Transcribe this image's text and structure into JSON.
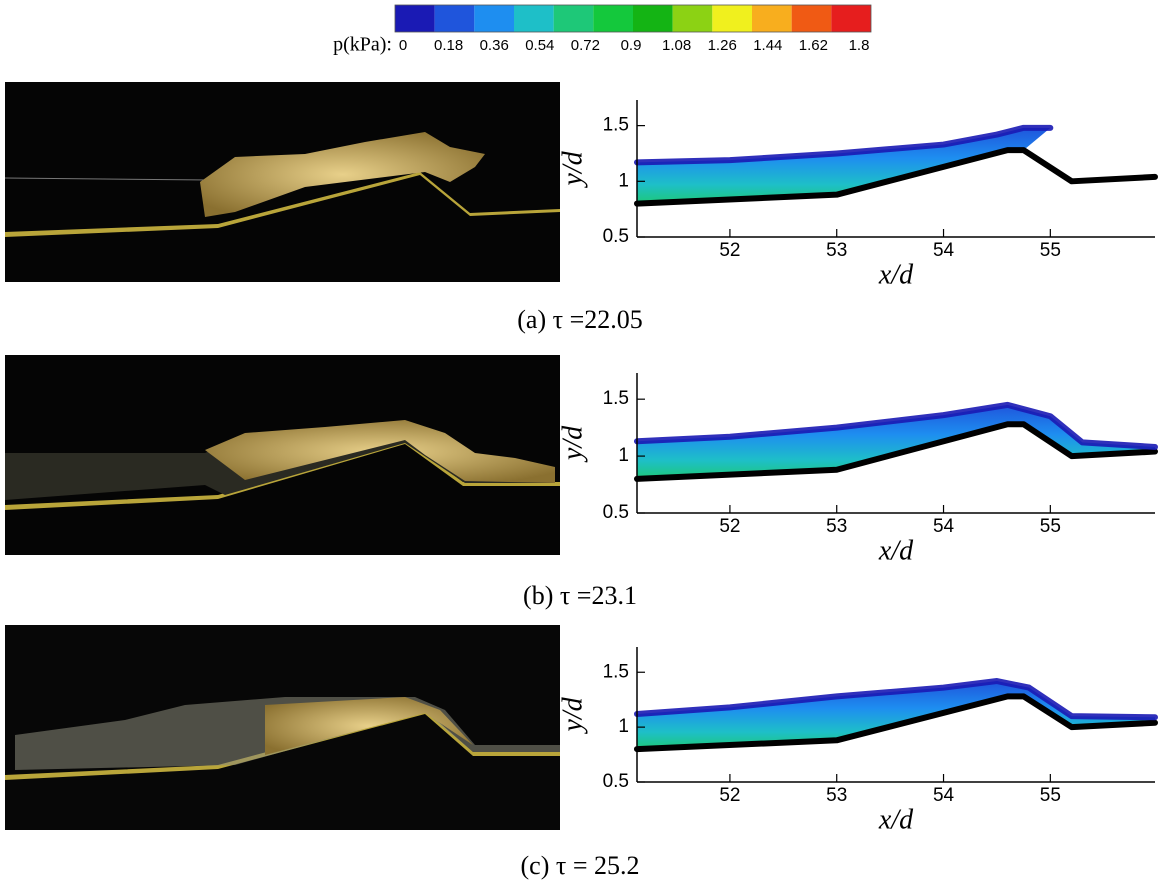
{
  "colorbar": {
    "label": "p(kPa):",
    "ticks": [
      0,
      0.18,
      0.36,
      0.54,
      0.72,
      0.9,
      1.08,
      1.26,
      1.44,
      1.62,
      1.8
    ],
    "colors": [
      "#1a1ab4",
      "#1f55dc",
      "#1e8ef0",
      "#1ebfc8",
      "#1ec878",
      "#14c83c",
      "#14b414",
      "#8cd214",
      "#f0f01e",
      "#f8ae1e",
      "#f05a14",
      "#e61e1e"
    ]
  },
  "chart_data": [
    {
      "type": "area",
      "caption": "(a) τ =22.05",
      "x_label": "x/d",
      "y_label": "y/d",
      "xlim": [
        51.13,
        55.98
      ],
      "ylim": [
        0.5,
        1.73
      ],
      "xticks": [
        52,
        53,
        54,
        55
      ],
      "yticks": [
        0.5,
        1,
        1.5
      ],
      "series": [
        {
          "color": "#000000",
          "x": [
            51.13,
            53,
            54.6,
            54.75,
            55.2,
            55.98
          ],
          "values": [
            0.8,
            0.88,
            1.28,
            1.28,
            1.0,
            1.04
          ]
        },
        {
          "color": "#1a1ab4",
          "x": [
            51.13,
            52,
            53,
            54,
            54.5,
            54.75,
            55.0
          ],
          "values": [
            1.17,
            1.19,
            1.25,
            1.33,
            1.42,
            1.48,
            1.48
          ]
        }
      ]
    },
    {
      "type": "area",
      "caption": "(b) τ =23.1",
      "x_label": "x/d",
      "y_label": "y/d",
      "xlim": [
        51.13,
        55.98
      ],
      "ylim": [
        0.5,
        1.73
      ],
      "xticks": [
        52,
        53,
        54,
        55
      ],
      "yticks": [
        0.5,
        1,
        1.5
      ],
      "series": [
        {
          "color": "#000000",
          "x": [
            51.13,
            53,
            54.6,
            54.75,
            55.2,
            55.98
          ],
          "values": [
            0.8,
            0.88,
            1.28,
            1.28,
            1.0,
            1.04
          ]
        },
        {
          "color": "#1a1ab4",
          "x": [
            51.13,
            52,
            53,
            54,
            54.6,
            55.0,
            55.3,
            55.98
          ],
          "values": [
            1.13,
            1.17,
            1.25,
            1.36,
            1.45,
            1.35,
            1.12,
            1.08
          ]
        }
      ]
    },
    {
      "type": "area",
      "caption": "(c) τ = 25.2",
      "x_label": "x/d",
      "y_label": "y/d",
      "xlim": [
        51.13,
        55.98
      ],
      "ylim": [
        0.5,
        1.73
      ],
      "xticks": [
        52,
        53,
        54,
        55
      ],
      "yticks": [
        0.5,
        1,
        1.5
      ],
      "series": [
        {
          "color": "#000000",
          "x": [
            51.13,
            53,
            54.6,
            54.75,
            55.2,
            55.98
          ],
          "values": [
            0.8,
            0.88,
            1.28,
            1.28,
            1.0,
            1.04
          ]
        },
        {
          "color": "#1a1ab4",
          "x": [
            51.13,
            52,
            53,
            54,
            54.5,
            54.8,
            55.2,
            55.98
          ],
          "values": [
            1.12,
            1.18,
            1.28,
            1.36,
            1.42,
            1.36,
            1.1,
            1.09
          ]
        }
      ]
    }
  ]
}
